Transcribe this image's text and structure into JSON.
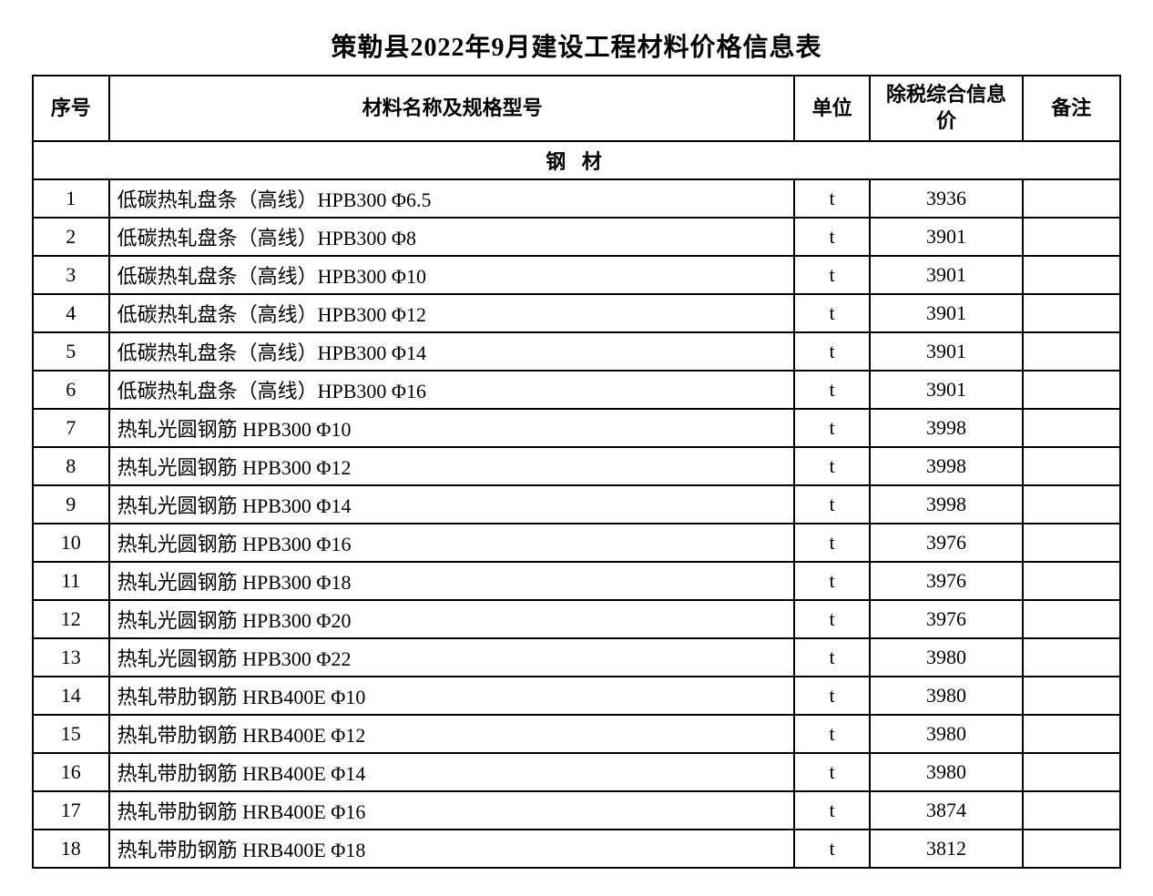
{
  "title": "策勒县2022年9月建设工程材料价格信息表",
  "columns": {
    "seq": "序号",
    "name": "材料名称及规格型号",
    "unit": "单位",
    "price": "除税综合信息价",
    "remark": "备注"
  },
  "section": "钢 材",
  "rows": [
    {
      "seq": "1",
      "name": "低碳热轧盘条（高线）HPB300  Φ6.5",
      "unit": "t",
      "price": "3936",
      "remark": ""
    },
    {
      "seq": "2",
      "name": "低碳热轧盘条（高线）HPB300  Φ8",
      "unit": "t",
      "price": "3901",
      "remark": ""
    },
    {
      "seq": "3",
      "name": "低碳热轧盘条（高线）HPB300  Φ10",
      "unit": "t",
      "price": "3901",
      "remark": ""
    },
    {
      "seq": "4",
      "name": "低碳热轧盘条（高线）HPB300  Φ12",
      "unit": "t",
      "price": "3901",
      "remark": ""
    },
    {
      "seq": "5",
      "name": "低碳热轧盘条（高线）HPB300  Φ14",
      "unit": "t",
      "price": "3901",
      "remark": ""
    },
    {
      "seq": "6",
      "name": "低碳热轧盘条（高线）HPB300  Φ16",
      "unit": "t",
      "price": "3901",
      "remark": ""
    },
    {
      "seq": "7",
      "name": "热轧光圆钢筋  HPB300  Φ10",
      "unit": "t",
      "price": "3998",
      "remark": ""
    },
    {
      "seq": "8",
      "name": "热轧光圆钢筋  HPB300  Φ12",
      "unit": "t",
      "price": "3998",
      "remark": ""
    },
    {
      "seq": "9",
      "name": "热轧光圆钢筋  HPB300  Φ14",
      "unit": "t",
      "price": "3998",
      "remark": ""
    },
    {
      "seq": "10",
      "name": "热轧光圆钢筋  HPB300  Φ16",
      "unit": "t",
      "price": "3976",
      "remark": ""
    },
    {
      "seq": "11",
      "name": "热轧光圆钢筋  HPB300  Φ18",
      "unit": "t",
      "price": "3976",
      "remark": ""
    },
    {
      "seq": "12",
      "name": "热轧光圆钢筋  HPB300  Φ20",
      "unit": "t",
      "price": "3976",
      "remark": ""
    },
    {
      "seq": "13",
      "name": "热轧光圆钢筋  HPB300  Φ22",
      "unit": "t",
      "price": "3980",
      "remark": ""
    },
    {
      "seq": "14",
      "name": "热轧带肋钢筋  HRB400E  Φ10",
      "unit": "t",
      "price": "3980",
      "remark": ""
    },
    {
      "seq": "15",
      "name": "热轧带肋钢筋  HRB400E  Φ12",
      "unit": "t",
      "price": "3980",
      "remark": ""
    },
    {
      "seq": "16",
      "name": "热轧带肋钢筋  HRB400E  Φ14",
      "unit": "t",
      "price": "3980",
      "remark": ""
    },
    {
      "seq": "17",
      "name": "热轧带肋钢筋  HRB400E  Φ16",
      "unit": "t",
      "price": "3874",
      "remark": ""
    },
    {
      "seq": "18",
      "name": "热轧带肋钢筋  HRB400E  Φ18",
      "unit": "t",
      "price": "3812",
      "remark": ""
    }
  ],
  "styling": {
    "background_color": "#ffffff",
    "border_color": "#000000",
    "title_fontsize": 28,
    "cell_fontsize": 22,
    "font_family": "SimSun"
  }
}
